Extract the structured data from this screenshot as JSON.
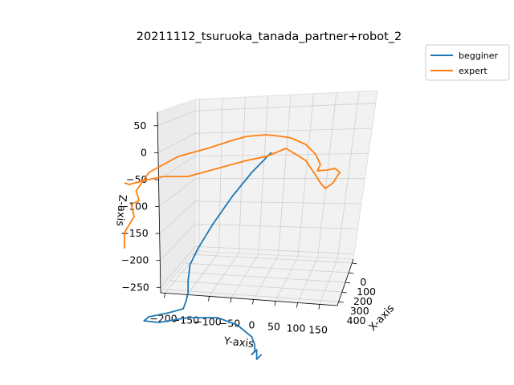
{
  "chart_data": {
    "type": "line",
    "projection": "3d",
    "title": "20211112_tsuruoka_tanada_partner+robot_2",
    "xlabel": "X-axis",
    "ylabel": "Y-axis",
    "zlabel": "Z-axis",
    "x_ticks": [
      "0",
      "100",
      "200",
      "300",
      "400"
    ],
    "y_ticks": [
      "−200",
      "−150",
      "−100",
      "−50",
      "0",
      "50",
      "100",
      "150"
    ],
    "z_ticks": [
      "50",
      "0",
      "−50",
      "−100",
      "−150",
      "−200",
      "−250"
    ],
    "grid": true,
    "legend_position": "top-right",
    "series": [
      {
        "name": "begginer",
        "color": "#1f77b4",
        "y": [
          -55,
          -75,
          -95,
          -115,
          -130,
          -138,
          -140,
          -140,
          -142,
          -145,
          -160,
          -180,
          -185,
          -170,
          -140,
          -110,
          -90,
          -75,
          -72,
          -72,
          -75,
          -70,
          -70,
          -65
        ],
        "z": [
          20,
          -5,
          -35,
          -70,
          -100,
          -120,
          -140,
          -155,
          -165,
          -175,
          -180,
          -185,
          -190,
          -192,
          -186,
          -186,
          -195,
          -210,
          -220,
          -228,
          -232,
          -226,
          -238,
          -232
        ]
      },
      {
        "name": "expert",
        "color": "#ff7f0e",
        "y": [
          -205,
          -205,
          -195,
          -198,
          -190,
          -193,
          -180,
          -150,
          -120,
          -95,
          -80,
          -60,
          -45,
          -35,
          -20,
          -10,
          -5,
          -8,
          2,
          10,
          15,
          12,
          8,
          0,
          -5,
          -10,
          -20,
          -40,
          -60,
          -80,
          -110,
          -140,
          -165,
          -185,
          -200,
          -205
        ],
        "z": [
          -100,
          -80,
          -60,
          -45,
          -40,
          -28,
          -5,
          15,
          25,
          35,
          40,
          42,
          40,
          38,
          30,
          18,
          5,
          -3,
          -2,
          0,
          -5,
          -10,
          -18,
          -25,
          -18,
          -8,
          10,
          25,
          15,
          10,
          0,
          -10,
          -10,
          -15,
          -20,
          -18
        ]
      }
    ]
  }
}
